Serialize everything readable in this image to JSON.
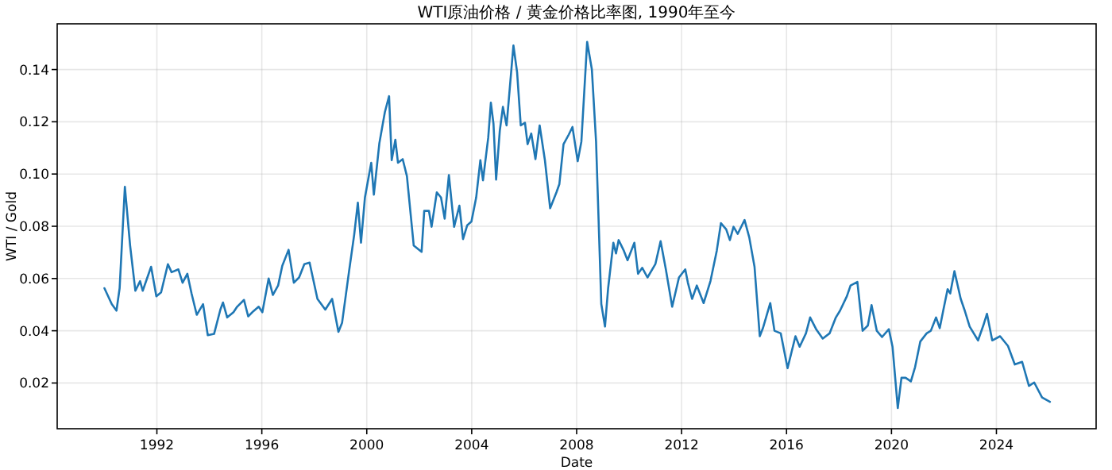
{
  "chart_data": {
    "type": "line",
    "title": "WTI原油价格 / 黄金价格比率图, 1990年至今",
    "xlabel": "Date",
    "ylabel": "WTI / Gold",
    "x": [
      1990.0,
      1990.28,
      1990.46,
      1990.58,
      1990.78,
      1990.98,
      1991.18,
      1991.36,
      1991.46,
      1991.78,
      1991.98,
      1992.16,
      1992.42,
      1992.56,
      1992.82,
      1992.98,
      1993.16,
      1993.32,
      1993.52,
      1993.76,
      1993.94,
      1994.18,
      1994.42,
      1994.52,
      1994.68,
      1994.92,
      1995.06,
      1995.32,
      1995.48,
      1995.68,
      1995.88,
      1996.02,
      1996.26,
      1996.42,
      1996.62,
      1996.78,
      1997.02,
      1997.22,
      1997.42,
      1997.62,
      1997.82,
      1998.12,
      1998.42,
      1998.68,
      1998.92,
      1999.06,
      1999.32,
      1999.52,
      1999.66,
      1999.78,
      1999.93,
      2000.17,
      2000.27,
      2000.48,
      2000.69,
      2000.85,
      2000.95,
      2001.09,
      2001.19,
      2001.37,
      2001.53,
      2001.79,
      2002.09,
      2002.19,
      2002.37,
      2002.47,
      2002.67,
      2002.83,
      2002.97,
      2003.13,
      2003.33,
      2003.53,
      2003.67,
      2003.83,
      2003.99,
      2004.17,
      2004.33,
      2004.43,
      2004.63,
      2004.73,
      2004.83,
      2004.93,
      2005.07,
      2005.19,
      2005.33,
      2005.59,
      2005.73,
      2005.87,
      2006.03,
      2006.13,
      2006.27,
      2006.43,
      2006.59,
      2006.79,
      2006.99,
      2007.23,
      2007.34,
      2007.5,
      2007.7,
      2007.84,
      2008.04,
      2008.18,
      2008.4,
      2008.58,
      2008.74,
      2008.94,
      2009.08,
      2009.2,
      2009.4,
      2009.5,
      2009.6,
      2009.8,
      2009.94,
      2010.2,
      2010.34,
      2010.5,
      2010.7,
      2011.0,
      2011.2,
      2011.4,
      2011.64,
      2011.9,
      2012.14,
      2012.24,
      2012.4,
      2012.58,
      2012.84,
      2013.1,
      2013.34,
      2013.5,
      2013.7,
      2013.84,
      2013.98,
      2014.14,
      2014.4,
      2014.58,
      2014.78,
      2014.98,
      2015.1,
      2015.38,
      2015.54,
      2015.78,
      2016.04,
      2016.34,
      2016.5,
      2016.74,
      2016.9,
      2017.14,
      2017.38,
      2017.64,
      2017.88,
      2018.04,
      2018.3,
      2018.44,
      2018.7,
      2018.9,
      2019.1,
      2019.24,
      2019.44,
      2019.64,
      2019.9,
      2020.04,
      2020.24,
      2020.38,
      2020.54,
      2020.74,
      2020.9,
      2021.1,
      2021.34,
      2021.5,
      2021.7,
      2021.84,
      2021.98,
      2022.14,
      2022.24,
      2022.4,
      2022.64,
      2022.78,
      2022.98,
      2023.3,
      2023.5,
      2023.64,
      2023.84,
      2024.14,
      2024.44,
      2024.7,
      2024.98,
      2025.24,
      2025.44,
      2025.74,
      2026.04
    ],
    "series": [
      {
        "color": "#1f77b4",
        "values": [
          0.0563,
          0.0502,
          0.0477,
          0.0563,
          0.0951,
          0.0726,
          0.0553,
          0.059,
          0.0553,
          0.0645,
          0.0532,
          0.0547,
          0.0655,
          0.0624,
          0.0635,
          0.0584,
          0.0618,
          0.0543,
          0.0461,
          0.0502,
          0.0383,
          0.0388,
          0.0481,
          0.0508,
          0.0451,
          0.0471,
          0.0492,
          0.0518,
          0.0455,
          0.0475,
          0.0492,
          0.0471,
          0.06,
          0.0537,
          0.0573,
          0.0649,
          0.071,
          0.0584,
          0.0604,
          0.0655,
          0.0661,
          0.0522,
          0.0481,
          0.0522,
          0.0396,
          0.0431,
          0.0624,
          0.0767,
          0.089,
          0.0737,
          0.091,
          0.1043,
          0.0921,
          0.1118,
          0.1237,
          0.1298,
          0.1053,
          0.1131,
          0.1043,
          0.1057,
          0.0992,
          0.0726,
          0.0702,
          0.0859,
          0.0859,
          0.0798,
          0.093,
          0.091,
          0.0829,
          0.0996,
          0.0798,
          0.0879,
          0.0751,
          0.0804,
          0.0818,
          0.091,
          0.1053,
          0.0976,
          0.1139,
          0.1273,
          0.1192,
          0.0979,
          0.1165,
          0.1257,
          0.1186,
          0.1492,
          0.139,
          0.1186,
          0.1196,
          0.1114,
          0.1155,
          0.1057,
          0.1186,
          0.1053,
          0.0869,
          0.093,
          0.0961,
          0.1114,
          0.1151,
          0.118,
          0.1049,
          0.1124,
          0.1506,
          0.14,
          0.1124,
          0.0502,
          0.0416,
          0.0563,
          0.0737,
          0.0696,
          0.0747,
          0.0706,
          0.067,
          0.0737,
          0.0618,
          0.0641,
          0.0604,
          0.0655,
          0.0743,
          0.0635,
          0.0492,
          0.0604,
          0.0635,
          0.0584,
          0.0522,
          0.0573,
          0.0506,
          0.059,
          0.0706,
          0.0812,
          0.0788,
          0.0747,
          0.0798,
          0.0771,
          0.0824,
          0.0757,
          0.0645,
          0.0379,
          0.041,
          0.0506,
          0.04,
          0.039,
          0.0257,
          0.0379,
          0.0339,
          0.039,
          0.0451,
          0.0404,
          0.037,
          0.039,
          0.0451,
          0.0477,
          0.0532,
          0.0573,
          0.0587,
          0.04,
          0.042,
          0.0498,
          0.04,
          0.0376,
          0.0406,
          0.0339,
          0.0104,
          0.022,
          0.022,
          0.0206,
          0.0261,
          0.0359,
          0.039,
          0.04,
          0.0451,
          0.041,
          0.0481,
          0.0559,
          0.0543,
          0.0628,
          0.0522,
          0.0481,
          0.0416,
          0.0363,
          0.042,
          0.0465,
          0.0363,
          0.0379,
          0.0342,
          0.0271,
          0.0281,
          0.0189,
          0.0202,
          0.0145,
          0.0128
        ]
      }
    ],
    "xlim": [
      1988.2,
      2027.8
    ],
    "ylim": [
      0.0025,
      0.1575
    ],
    "xticks": [
      1992,
      1996,
      2000,
      2004,
      2008,
      2012,
      2016,
      2020,
      2024
    ],
    "yticks": [
      0.02,
      0.04,
      0.06,
      0.08,
      {
        "value": 0.1,
        "label": "0.10"
      },
      0.12,
      0.14
    ],
    "grid": true
  }
}
